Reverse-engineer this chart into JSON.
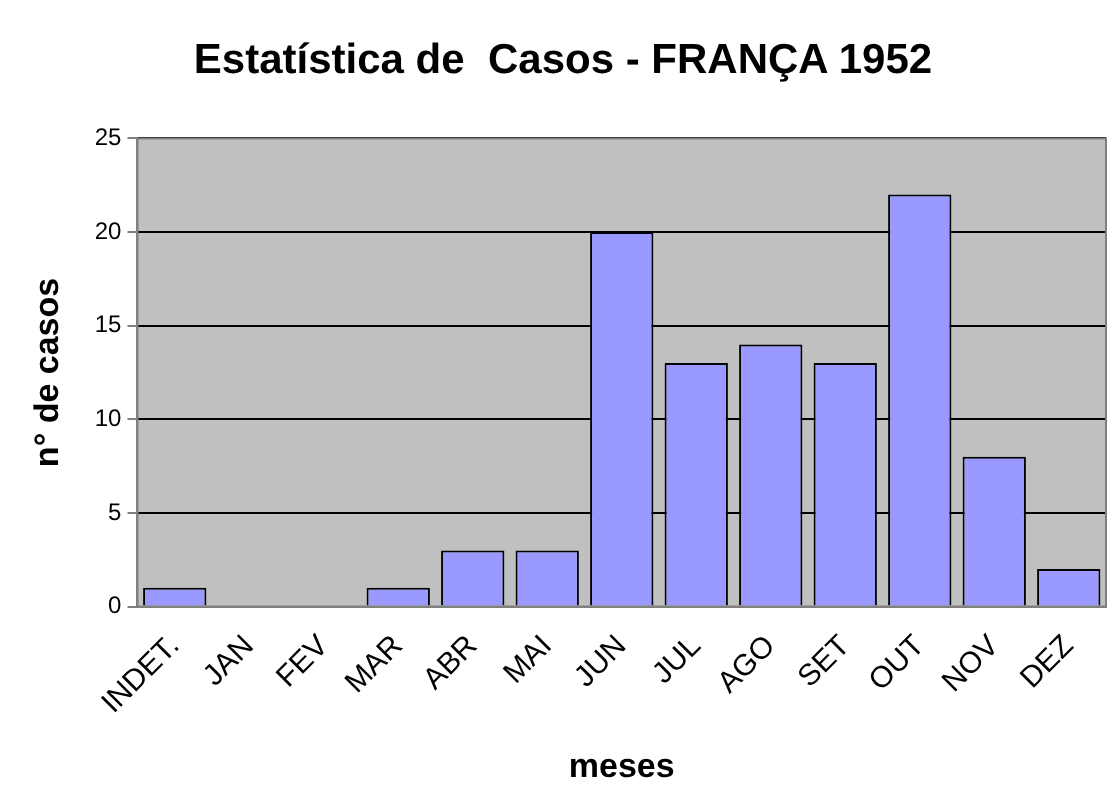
{
  "chart_data": {
    "type": "bar",
    "title": "Estatística de  Casos - FRANÇA 1952",
    "xlabel": "meses",
    "ylabel": "n° de casos",
    "categories": [
      "INDET.",
      "JAN",
      "FEV",
      "MAR",
      "ABR",
      "MAI",
      "JUN",
      "JUL",
      "AGO",
      "SET",
      "OUT",
      "NOV",
      "DEZ"
    ],
    "values": [
      1,
      0,
      0,
      1,
      3,
      3,
      20,
      13,
      14,
      13,
      22,
      8,
      2
    ],
    "color": "#9999ff",
    "ylim": [
      0,
      25
    ],
    "yticks": [
      0,
      5,
      10,
      15,
      20,
      25
    ],
    "grid": "y",
    "legend": false
  }
}
